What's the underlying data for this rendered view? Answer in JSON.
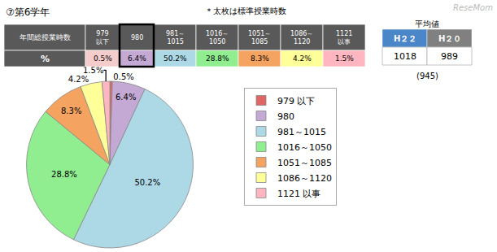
{
  "chart_data": {
    "type": "pie",
    "title": "⑦第6学年",
    "subtitle": "＊太枚は標準授業時数",
    "annotations": [
      "ReseMom"
    ],
    "categories": [
      "979 以下",
      "980",
      "981～1015",
      "1016～1050",
      "1051～1085",
      "1086～1120",
      "1121 以事"
    ],
    "values": [
      0.5,
      6.4,
      50.2,
      28.8,
      8.3,
      4.2,
      1.5
    ],
    "value_labels": [
      "0.5%",
      "6.4%",
      "50.2%",
      "28.8%",
      "8.3%",
      "4.2%",
      "1.5%"
    ],
    "colors": [
      "#e06666",
      "#c4a9d4",
      "#add8e6",
      "#90ee90",
      "#f4a460",
      "#ffff99",
      "#ffb6c1"
    ],
    "data_labels": true,
    "legend": "right",
    "table": {
      "row_label": "年間総授業時数",
      "columns": [
        "979\n以下",
        "980",
        "981～\n1015",
        "1016～\n1050",
        "1051～\n1085",
        "1086～\n1120",
        "1121\n以事"
      ],
      "value_row_label": "%",
      "colors": [
        "#f4cccc",
        "#c4a9d4",
        "#add8e6",
        "#90ee90",
        "#f4a460",
        "#ffff99",
        "#ffb6c1"
      ],
      "header_color": "#595959",
      "header_text_color": "#ffffff",
      "highlight": "980"
    },
    "averages": {
      "label": "平均値",
      "columns": [
        "H２２",
        "H２０"
      ],
      "colors": [
        "#4a86c8",
        "#808080"
      ],
      "values": [
        1018,
        989
      ],
      "note": "(945)"
    }
  }
}
